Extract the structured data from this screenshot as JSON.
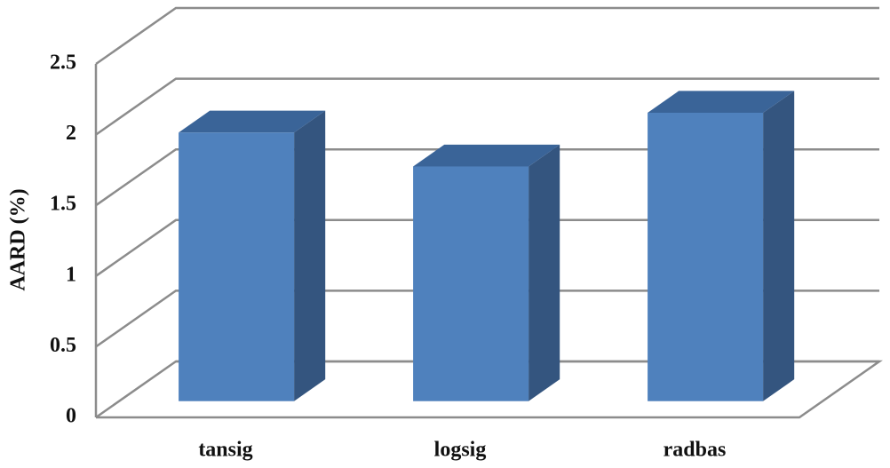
{
  "chart_data": {
    "type": "bar3d",
    "y_label": "AARD (%)",
    "categories": [
      "tansig",
      "logsig",
      "radbas"
    ],
    "values": [
      1.9,
      1.66,
      2.04
    ],
    "color": "#4f81bd",
    "ylim": [
      0,
      2.5
    ],
    "yticks": [
      0,
      0.5,
      1,
      1.5,
      2,
      2.5
    ],
    "grid": true
  }
}
